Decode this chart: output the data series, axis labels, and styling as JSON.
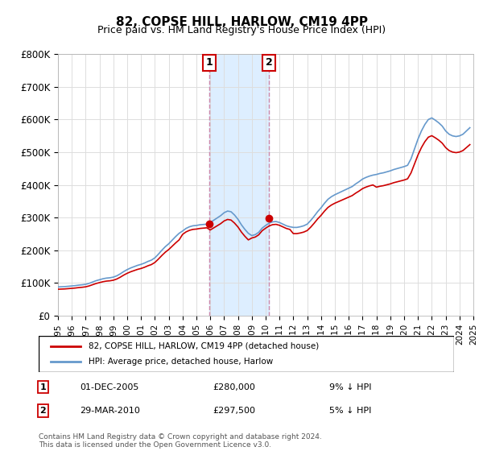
{
  "title": "82, COPSE HILL, HARLOW, CM19 4PP",
  "subtitle": "Price paid vs. HM Land Registry's House Price Index (HPI)",
  "footer": "Contains HM Land Registry data © Crown copyright and database right 2024.\nThis data is licensed under the Open Government Licence v3.0.",
  "legend_line1": "82, COPSE HILL, HARLOW, CM19 4PP (detached house)",
  "legend_line2": "HPI: Average price, detached house, Harlow",
  "transaction1_label": "1",
  "transaction1_date": "01-DEC-2005",
  "transaction1_price": "£280,000",
  "transaction1_hpi": "9% ↓ HPI",
  "transaction2_label": "2",
  "transaction2_date": "29-MAR-2010",
  "transaction2_price": "£297,500",
  "transaction2_hpi": "5% ↓ HPI",
  "red_color": "#cc0000",
  "blue_color": "#6699cc",
  "shade_color": "#ddeeff",
  "marker_box_color": "#cc0000",
  "ylim": [
    0,
    800000
  ],
  "yticks": [
    0,
    100000,
    200000,
    300000,
    400000,
    500000,
    600000,
    700000,
    800000
  ],
  "ytick_labels": [
    "£0",
    "£100K",
    "£200K",
    "£300K",
    "£400K",
    "£500K",
    "£600K",
    "£700K",
    "£800K"
  ],
  "hpi_dates": [
    1995.0,
    1995.25,
    1995.5,
    1995.75,
    1996.0,
    1996.25,
    1996.5,
    1996.75,
    1997.0,
    1997.25,
    1997.5,
    1997.75,
    1998.0,
    1998.25,
    1998.5,
    1998.75,
    1999.0,
    1999.25,
    1999.5,
    1999.75,
    2000.0,
    2000.25,
    2000.5,
    2000.75,
    2001.0,
    2001.25,
    2001.5,
    2001.75,
    2002.0,
    2002.25,
    2002.5,
    2002.75,
    2003.0,
    2003.25,
    2003.5,
    2003.75,
    2004.0,
    2004.25,
    2004.5,
    2004.75,
    2005.0,
    2005.25,
    2005.5,
    2005.75,
    2006.0,
    2006.25,
    2006.5,
    2006.75,
    2007.0,
    2007.25,
    2007.5,
    2007.75,
    2008.0,
    2008.25,
    2008.5,
    2008.75,
    2009.0,
    2009.25,
    2009.5,
    2009.75,
    2010.0,
    2010.25,
    2010.5,
    2010.75,
    2011.0,
    2011.25,
    2011.5,
    2011.75,
    2012.0,
    2012.25,
    2012.5,
    2012.75,
    2013.0,
    2013.25,
    2013.5,
    2013.75,
    2014.0,
    2014.25,
    2014.5,
    2014.75,
    2015.0,
    2015.25,
    2015.5,
    2015.75,
    2016.0,
    2016.25,
    2016.5,
    2016.75,
    2017.0,
    2017.25,
    2017.5,
    2017.75,
    2018.0,
    2018.25,
    2018.5,
    2018.75,
    2019.0,
    2019.25,
    2019.5,
    2019.75,
    2020.0,
    2020.25,
    2020.5,
    2020.75,
    2021.0,
    2021.25,
    2021.5,
    2021.75,
    2022.0,
    2022.25,
    2022.5,
    2022.75,
    2023.0,
    2023.25,
    2023.5,
    2023.75,
    2024.0,
    2024.25,
    2024.5,
    2024.75
  ],
  "hpi_values": [
    88000,
    88500,
    89000,
    90000,
    91000,
    92000,
    93500,
    94500,
    96000,
    99000,
    103000,
    107000,
    110000,
    113000,
    115000,
    116000,
    118000,
    122000,
    128000,
    135000,
    141000,
    146000,
    150000,
    154000,
    157000,
    161000,
    166000,
    170000,
    177000,
    188000,
    200000,
    211000,
    220000,
    231000,
    242000,
    252000,
    259000,
    267000,
    272000,
    275000,
    276000,
    278000,
    279000,
    280000,
    285000,
    292000,
    299000,
    306000,
    315000,
    320000,
    318000,
    308000,
    295000,
    278000,
    264000,
    252000,
    245000,
    248000,
    255000,
    268000,
    276000,
    283000,
    287000,
    288000,
    285000,
    280000,
    275000,
    272000,
    270000,
    270000,
    272000,
    275000,
    280000,
    291000,
    304000,
    318000,
    330000,
    344000,
    356000,
    364000,
    370000,
    375000,
    380000,
    385000,
    390000,
    395000,
    403000,
    410000,
    418000,
    423000,
    427000,
    430000,
    432000,
    435000,
    437000,
    440000,
    443000,
    447000,
    450000,
    453000,
    456000,
    460000,
    480000,
    510000,
    540000,
    565000,
    585000,
    600000,
    605000,
    598000,
    590000,
    580000,
    565000,
    555000,
    550000,
    548000,
    550000,
    555000,
    565000,
    575000
  ],
  "property_sales": [
    {
      "date": 2005.92,
      "price": 280000
    },
    {
      "date": 2010.25,
      "price": 297500
    }
  ],
  "xmin": 1995,
  "xmax": 2025
}
